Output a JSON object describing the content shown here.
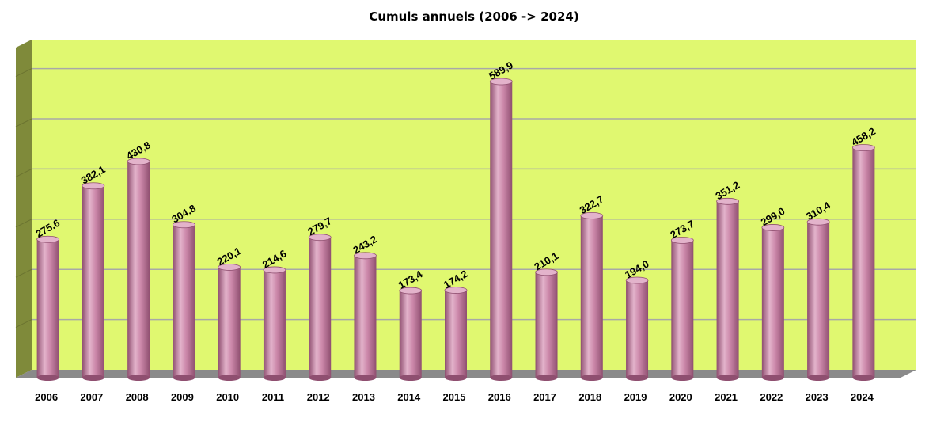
{
  "chart_data": {
    "type": "bar",
    "title": "Cumuls annuels (2006 -> 2024)",
    "xlabel": "",
    "ylabel": "",
    "ylim": [
      0,
      600
    ],
    "grid": true,
    "categories": [
      "2006",
      "2007",
      "2008",
      "2009",
      "2010",
      "2011",
      "2012",
      "2013",
      "2014",
      "2015",
      "2016",
      "2017",
      "2018",
      "2019",
      "2020",
      "2021",
      "2022",
      "2023",
      "2024"
    ],
    "values": [
      275.6,
      382.1,
      430.8,
      304.8,
      220.1,
      214.6,
      279.7,
      243.2,
      173.4,
      174.2,
      589.9,
      210.1,
      322.7,
      194.0,
      273.7,
      351.2,
      299.0,
      310.4,
      458.2
    ],
    "value_labels": [
      "275,6",
      "382,1",
      "430,8",
      "304,8",
      "220,1",
      "214,6",
      "279,7",
      "243,2",
      "173,4",
      "174,2",
      "589,9",
      "210,1",
      "322,7",
      "194,0",
      "273,7",
      "351,2",
      "299,0",
      "310,4",
      "458,2"
    ],
    "colors": {
      "plot_background": "#e0f870",
      "side_wall": "#7f8a3a",
      "floor": "#8a8a8a",
      "bar": "#cc88aa",
      "bar_highlight": "#e3b3cb",
      "bar_shadow": "#8f4f70",
      "gridline": "#a8a8a8"
    }
  }
}
